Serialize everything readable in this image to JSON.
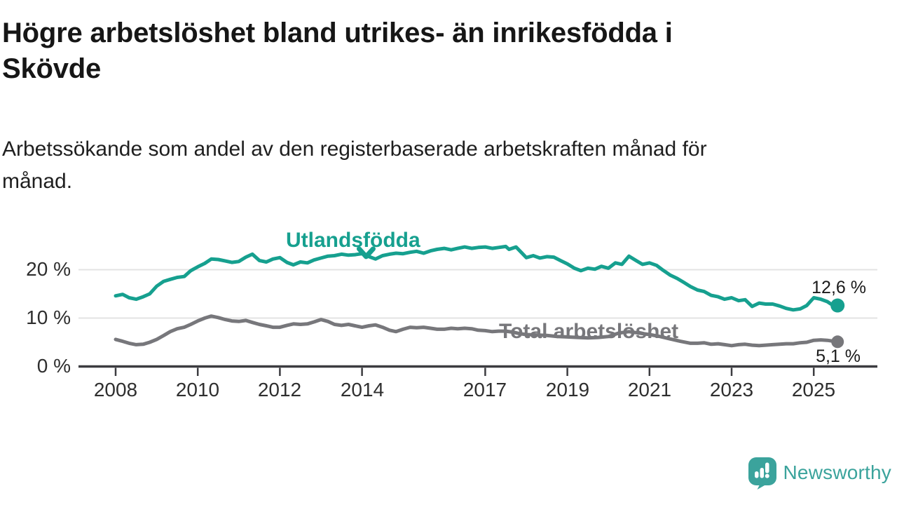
{
  "title_lines": [
    "Högre arbetslöshet bland utrikes- än inrikesfödda i",
    "Skövde"
  ],
  "subtitle_lines": [
    "Arbetssökande som andel av den registerbaserade arbetskraften månad för",
    "månad."
  ],
  "branding": {
    "logo_text": "Newsworthy",
    "logo_color": "#3ba39c",
    "logo_icon": "chart-speech-bubble-icon"
  },
  "chart_data": {
    "type": "line",
    "title": "Högre arbetslöshet bland utrikes- än inrikesfödda i Skövde",
    "subtitle": "Arbetssökande som andel av den registerbaserade arbetskraften månad för månad.",
    "grid": "horizontal",
    "legend_position": "inline-labels",
    "x_axis": {
      "ticks": [
        2008,
        2010,
        2012,
        2014,
        2017,
        2019,
        2021,
        2023,
        2025
      ],
      "tick_labels": [
        "2008",
        "2010",
        "2012",
        "2014",
        "2017",
        "2019",
        "2021",
        "2023",
        "2025"
      ],
      "range": [
        2007.1,
        2026.55
      ]
    },
    "y_axis": {
      "ticks": [
        0,
        10,
        20
      ],
      "tick_labels": [
        "0 %",
        "10 %",
        "20 %"
      ],
      "range": [
        0,
        28
      ],
      "unit": "%"
    },
    "annotations": [
      {
        "type": "arrow-down",
        "year": 2014.1,
        "from_pct": 24.3,
        "to_pct": 22.7,
        "color": "#16a08f"
      }
    ],
    "series": [
      {
        "name": "Utlandsfödda",
        "color": "#16a08f",
        "end_label": "12,6 %",
        "end_value": 12.6,
        "dot_radius": 10,
        "points": [
          [
            2008.0,
            14.6
          ],
          [
            2008.17,
            14.9
          ],
          [
            2008.33,
            14.2
          ],
          [
            2008.5,
            13.9
          ],
          [
            2008.67,
            14.4
          ],
          [
            2008.83,
            15.0
          ],
          [
            2009.0,
            16.6
          ],
          [
            2009.17,
            17.6
          ],
          [
            2009.33,
            18.0
          ],
          [
            2009.5,
            18.4
          ],
          [
            2009.67,
            18.6
          ],
          [
            2009.83,
            19.8
          ],
          [
            2010.0,
            20.6
          ],
          [
            2010.17,
            21.3
          ],
          [
            2010.33,
            22.2
          ],
          [
            2010.5,
            22.1
          ],
          [
            2010.67,
            21.8
          ],
          [
            2010.83,
            21.5
          ],
          [
            2011.0,
            21.7
          ],
          [
            2011.17,
            22.6
          ],
          [
            2011.33,
            23.2
          ],
          [
            2011.5,
            21.9
          ],
          [
            2011.67,
            21.6
          ],
          [
            2011.83,
            22.2
          ],
          [
            2012.0,
            22.5
          ],
          [
            2012.17,
            21.5
          ],
          [
            2012.33,
            21.0
          ],
          [
            2012.5,
            21.6
          ],
          [
            2012.67,
            21.4
          ],
          [
            2012.83,
            22.0
          ],
          [
            2013.0,
            22.4
          ],
          [
            2013.17,
            22.8
          ],
          [
            2013.33,
            22.9
          ],
          [
            2013.5,
            23.2
          ],
          [
            2013.67,
            23.0
          ],
          [
            2013.83,
            23.1
          ],
          [
            2014.0,
            23.3
          ],
          [
            2014.17,
            22.7
          ],
          [
            2014.33,
            22.2
          ],
          [
            2014.5,
            22.9
          ],
          [
            2014.67,
            23.2
          ],
          [
            2014.83,
            23.4
          ],
          [
            2015.0,
            23.3
          ],
          [
            2015.17,
            23.6
          ],
          [
            2015.33,
            23.8
          ],
          [
            2015.5,
            23.4
          ],
          [
            2015.67,
            23.9
          ],
          [
            2015.83,
            24.2
          ],
          [
            2016.0,
            24.4
          ],
          [
            2016.17,
            24.1
          ],
          [
            2016.33,
            24.4
          ],
          [
            2016.5,
            24.7
          ],
          [
            2016.67,
            24.4
          ],
          [
            2016.83,
            24.6
          ],
          [
            2017.0,
            24.7
          ],
          [
            2017.17,
            24.4
          ],
          [
            2017.33,
            24.6
          ],
          [
            2017.5,
            24.8
          ],
          [
            2017.58,
            24.2
          ],
          [
            2017.75,
            24.7
          ],
          [
            2017.92,
            23.2
          ],
          [
            2018.0,
            22.5
          ],
          [
            2018.17,
            22.9
          ],
          [
            2018.33,
            22.4
          ],
          [
            2018.5,
            22.7
          ],
          [
            2018.67,
            22.6
          ],
          [
            2018.83,
            21.9
          ],
          [
            2019.0,
            21.2
          ],
          [
            2019.17,
            20.3
          ],
          [
            2019.33,
            19.8
          ],
          [
            2019.5,
            20.3
          ],
          [
            2019.67,
            20.1
          ],
          [
            2019.83,
            20.7
          ],
          [
            2020.0,
            20.3
          ],
          [
            2020.17,
            21.4
          ],
          [
            2020.33,
            21.1
          ],
          [
            2020.5,
            22.8
          ],
          [
            2020.67,
            21.9
          ],
          [
            2020.83,
            21.1
          ],
          [
            2021.0,
            21.4
          ],
          [
            2021.17,
            20.9
          ],
          [
            2021.33,
            19.9
          ],
          [
            2021.5,
            18.9
          ],
          [
            2021.67,
            18.2
          ],
          [
            2021.83,
            17.4
          ],
          [
            2022.0,
            16.5
          ],
          [
            2022.17,
            15.8
          ],
          [
            2022.33,
            15.5
          ],
          [
            2022.5,
            14.7
          ],
          [
            2022.67,
            14.4
          ],
          [
            2022.83,
            13.9
          ],
          [
            2023.0,
            14.2
          ],
          [
            2023.17,
            13.6
          ],
          [
            2023.33,
            13.8
          ],
          [
            2023.5,
            12.4
          ],
          [
            2023.67,
            13.1
          ],
          [
            2023.83,
            12.9
          ],
          [
            2024.0,
            12.9
          ],
          [
            2024.17,
            12.5
          ],
          [
            2024.33,
            12.0
          ],
          [
            2024.5,
            11.7
          ],
          [
            2024.67,
            11.9
          ],
          [
            2024.83,
            12.6
          ],
          [
            2025.0,
            14.2
          ],
          [
            2025.17,
            13.9
          ],
          [
            2025.33,
            13.4
          ],
          [
            2025.42,
            12.9
          ],
          [
            2025.5,
            12.7
          ],
          [
            2025.58,
            12.6
          ]
        ]
      },
      {
        "name": "Total arbetslöshet",
        "color": "#77777b",
        "end_label": "5,1 %",
        "end_value": 5.1,
        "dot_radius": 9,
        "points": [
          [
            2008.0,
            5.6
          ],
          [
            2008.17,
            5.2
          ],
          [
            2008.33,
            4.8
          ],
          [
            2008.5,
            4.5
          ],
          [
            2008.67,
            4.6
          ],
          [
            2008.83,
            5.0
          ],
          [
            2009.0,
            5.6
          ],
          [
            2009.17,
            6.4
          ],
          [
            2009.33,
            7.2
          ],
          [
            2009.5,
            7.8
          ],
          [
            2009.67,
            8.1
          ],
          [
            2009.83,
            8.7
          ],
          [
            2010.0,
            9.4
          ],
          [
            2010.17,
            10.0
          ],
          [
            2010.33,
            10.4
          ],
          [
            2010.5,
            10.1
          ],
          [
            2010.67,
            9.7
          ],
          [
            2010.83,
            9.4
          ],
          [
            2011.0,
            9.3
          ],
          [
            2011.17,
            9.5
          ],
          [
            2011.33,
            9.1
          ],
          [
            2011.5,
            8.7
          ],
          [
            2011.67,
            8.4
          ],
          [
            2011.83,
            8.1
          ],
          [
            2012.0,
            8.1
          ],
          [
            2012.17,
            8.5
          ],
          [
            2012.33,
            8.8
          ],
          [
            2012.5,
            8.7
          ],
          [
            2012.67,
            8.8
          ],
          [
            2012.83,
            9.2
          ],
          [
            2013.0,
            9.7
          ],
          [
            2013.17,
            9.3
          ],
          [
            2013.33,
            8.7
          ],
          [
            2013.5,
            8.5
          ],
          [
            2013.67,
            8.7
          ],
          [
            2013.83,
            8.4
          ],
          [
            2014.0,
            8.1
          ],
          [
            2014.17,
            8.4
          ],
          [
            2014.33,
            8.6
          ],
          [
            2014.5,
            8.1
          ],
          [
            2014.67,
            7.5
          ],
          [
            2014.83,
            7.2
          ],
          [
            2015.0,
            7.7
          ],
          [
            2015.17,
            8.1
          ],
          [
            2015.33,
            8.0
          ],
          [
            2015.5,
            8.1
          ],
          [
            2015.67,
            7.9
          ],
          [
            2015.83,
            7.7
          ],
          [
            2016.0,
            7.7
          ],
          [
            2016.17,
            7.9
          ],
          [
            2016.33,
            7.8
          ],
          [
            2016.5,
            7.9
          ],
          [
            2016.67,
            7.8
          ],
          [
            2016.83,
            7.5
          ],
          [
            2017.0,
            7.4
          ],
          [
            2017.17,
            7.2
          ],
          [
            2017.33,
            7.3
          ],
          [
            2017.5,
            7.3
          ],
          [
            2017.67,
            7.1
          ],
          [
            2017.83,
            6.8
          ],
          [
            2018.0,
            6.6
          ],
          [
            2018.25,
            6.5
          ],
          [
            2018.5,
            6.4
          ],
          [
            2018.75,
            6.2
          ],
          [
            2019.0,
            6.1
          ],
          [
            2019.25,
            6.0
          ],
          [
            2019.5,
            5.9
          ],
          [
            2019.75,
            6.0
          ],
          [
            2020.0,
            6.2
          ],
          [
            2020.25,
            6.9
          ],
          [
            2020.5,
            7.2
          ],
          [
            2020.75,
            6.9
          ],
          [
            2021.0,
            6.6
          ],
          [
            2021.25,
            6.2
          ],
          [
            2021.5,
            5.7
          ],
          [
            2021.75,
            5.2
          ],
          [
            2022.0,
            4.8
          ],
          [
            2022.17,
            4.8
          ],
          [
            2022.33,
            4.9
          ],
          [
            2022.5,
            4.6
          ],
          [
            2022.67,
            4.7
          ],
          [
            2022.83,
            4.5
          ],
          [
            2023.0,
            4.3
          ],
          [
            2023.17,
            4.5
          ],
          [
            2023.33,
            4.6
          ],
          [
            2023.5,
            4.4
          ],
          [
            2023.67,
            4.3
          ],
          [
            2023.83,
            4.4
          ],
          [
            2024.0,
            4.5
          ],
          [
            2024.17,
            4.6
          ],
          [
            2024.33,
            4.7
          ],
          [
            2024.5,
            4.7
          ],
          [
            2024.67,
            4.9
          ],
          [
            2024.83,
            5.0
          ],
          [
            2025.0,
            5.4
          ],
          [
            2025.17,
            5.5
          ],
          [
            2025.33,
            5.4
          ],
          [
            2025.5,
            5.2
          ],
          [
            2025.58,
            5.1
          ]
        ]
      }
    ]
  }
}
